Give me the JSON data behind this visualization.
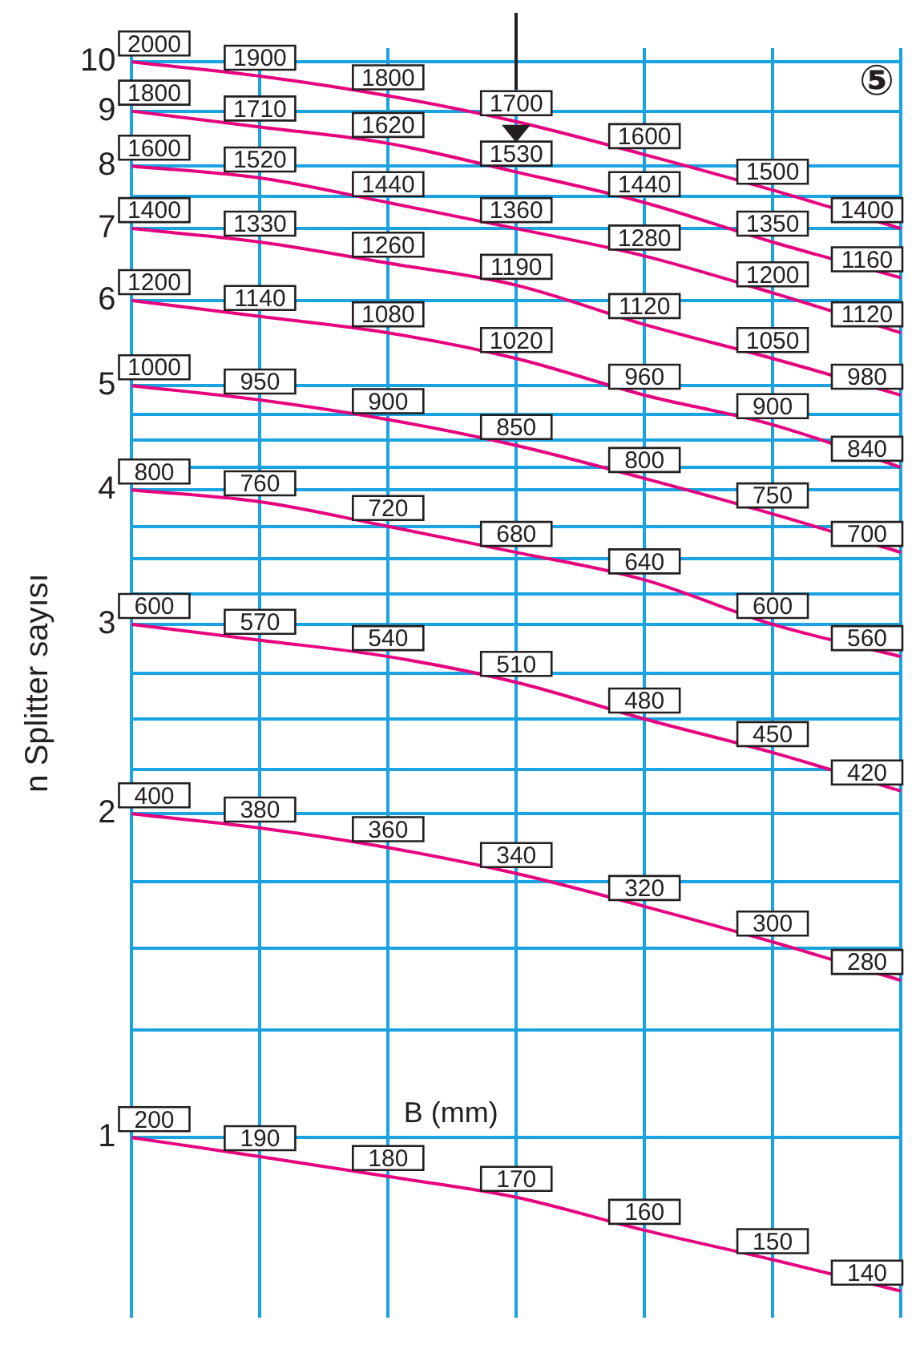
{
  "chart_data": {
    "type": "line",
    "ylabel": "n Splitter sayısı",
    "annotations": [
      "B (mm)",
      "⑤",
      "2000",
      "1900",
      "1800",
      "1700",
      "1600",
      "1500",
      "1400",
      "1800",
      "1710",
      "1620",
      "1530",
      "1440",
      "1350",
      "1160",
      "1600",
      "1520",
      "1440",
      "1360",
      "1280",
      "1200",
      "1120",
      "1400",
      "1330",
      "1260",
      "1190",
      "1120",
      "1050",
      "980",
      "1200",
      "1140",
      "1080",
      "1020",
      "960",
      "900",
      "840",
      "1000",
      "950",
      "900",
      "850",
      "800",
      "750",
      "700",
      "800",
      "760",
      "720",
      "680",
      "640",
      "600",
      "560",
      "600",
      "570",
      "540",
      "510",
      "480",
      "450",
      "420",
      "400",
      "380",
      "360",
      "340",
      "320",
      "300",
      "280",
      "200",
      "190",
      "180",
      "170",
      "160",
      "150",
      "140"
    ],
    "categories": [
      null,
      null,
      null,
      null,
      null,
      null,
      null
    ],
    "log": "y",
    "ylim": [
      0.68,
      10.3
    ],
    "yticks": [
      1,
      2,
      3,
      4,
      5,
      6,
      7,
      8,
      9,
      10,
      {
        "value": 1.26,
        "label": null
      },
      {
        "value": 1.5,
        "label": null
      },
      {
        "value": 1.73,
        "label": null
      },
      {
        "value": 2.2,
        "label": null
      },
      {
        "value": 2.45,
        "label": null
      },
      {
        "value": 2.7,
        "label": null
      },
      {
        "value": 3.2,
        "label": null
      },
      {
        "value": 3.45,
        "label": null
      },
      {
        "value": 3.7,
        "label": null
      },
      {
        "value": 4.2,
        "label": null
      },
      {
        "value": 4.45,
        "label": null
      },
      {
        "value": 4.7,
        "label": null
      },
      {
        "value": 7.5,
        "label": null
      }
    ],
    "grid": true,
    "legend": false,
    "marker": "none",
    "line_style": "solid",
    "series": [
      {
        "color": "#e6007e",
        "values": [
          10,
          9.7,
          9.3,
          8.8,
          8.2,
          7.6,
          7.0
        ]
      },
      {
        "color": "#e6007e",
        "values": [
          9,
          8.7,
          8.4,
          7.9,
          7.4,
          6.8,
          6.3
        ]
      },
      {
        "color": "#e6007e",
        "values": [
          8,
          7.8,
          7.4,
          7.0,
          6.6,
          6.1,
          5.6
        ]
      },
      {
        "color": "#e6007e",
        "values": [
          7,
          6.8,
          6.5,
          6.2,
          5.7,
          5.3,
          4.9
        ]
      },
      {
        "color": "#e6007e",
        "values": [
          6,
          5.8,
          5.6,
          5.3,
          4.9,
          4.6,
          4.2
        ]
      },
      {
        "color": "#e6007e",
        "values": [
          5,
          4.85,
          4.65,
          4.4,
          4.1,
          3.8,
          3.5
        ]
      },
      {
        "color": "#e6007e",
        "values": [
          4,
          3.9,
          3.7,
          3.5,
          3.3,
          3.0,
          2.8
        ]
      },
      {
        "color": "#e6007e",
        "values": [
          3,
          2.9,
          2.8,
          2.65,
          2.45,
          2.28,
          2.1
        ]
      },
      {
        "color": "#e6007e",
        "values": [
          2,
          1.94,
          1.86,
          1.76,
          1.64,
          1.52,
          1.4
        ]
      },
      {
        "color": "#e6007e",
        "values": [
          1,
          0.96,
          0.92,
          0.88,
          0.82,
          0.77,
          0.72
        ]
      }
    ]
  }
}
